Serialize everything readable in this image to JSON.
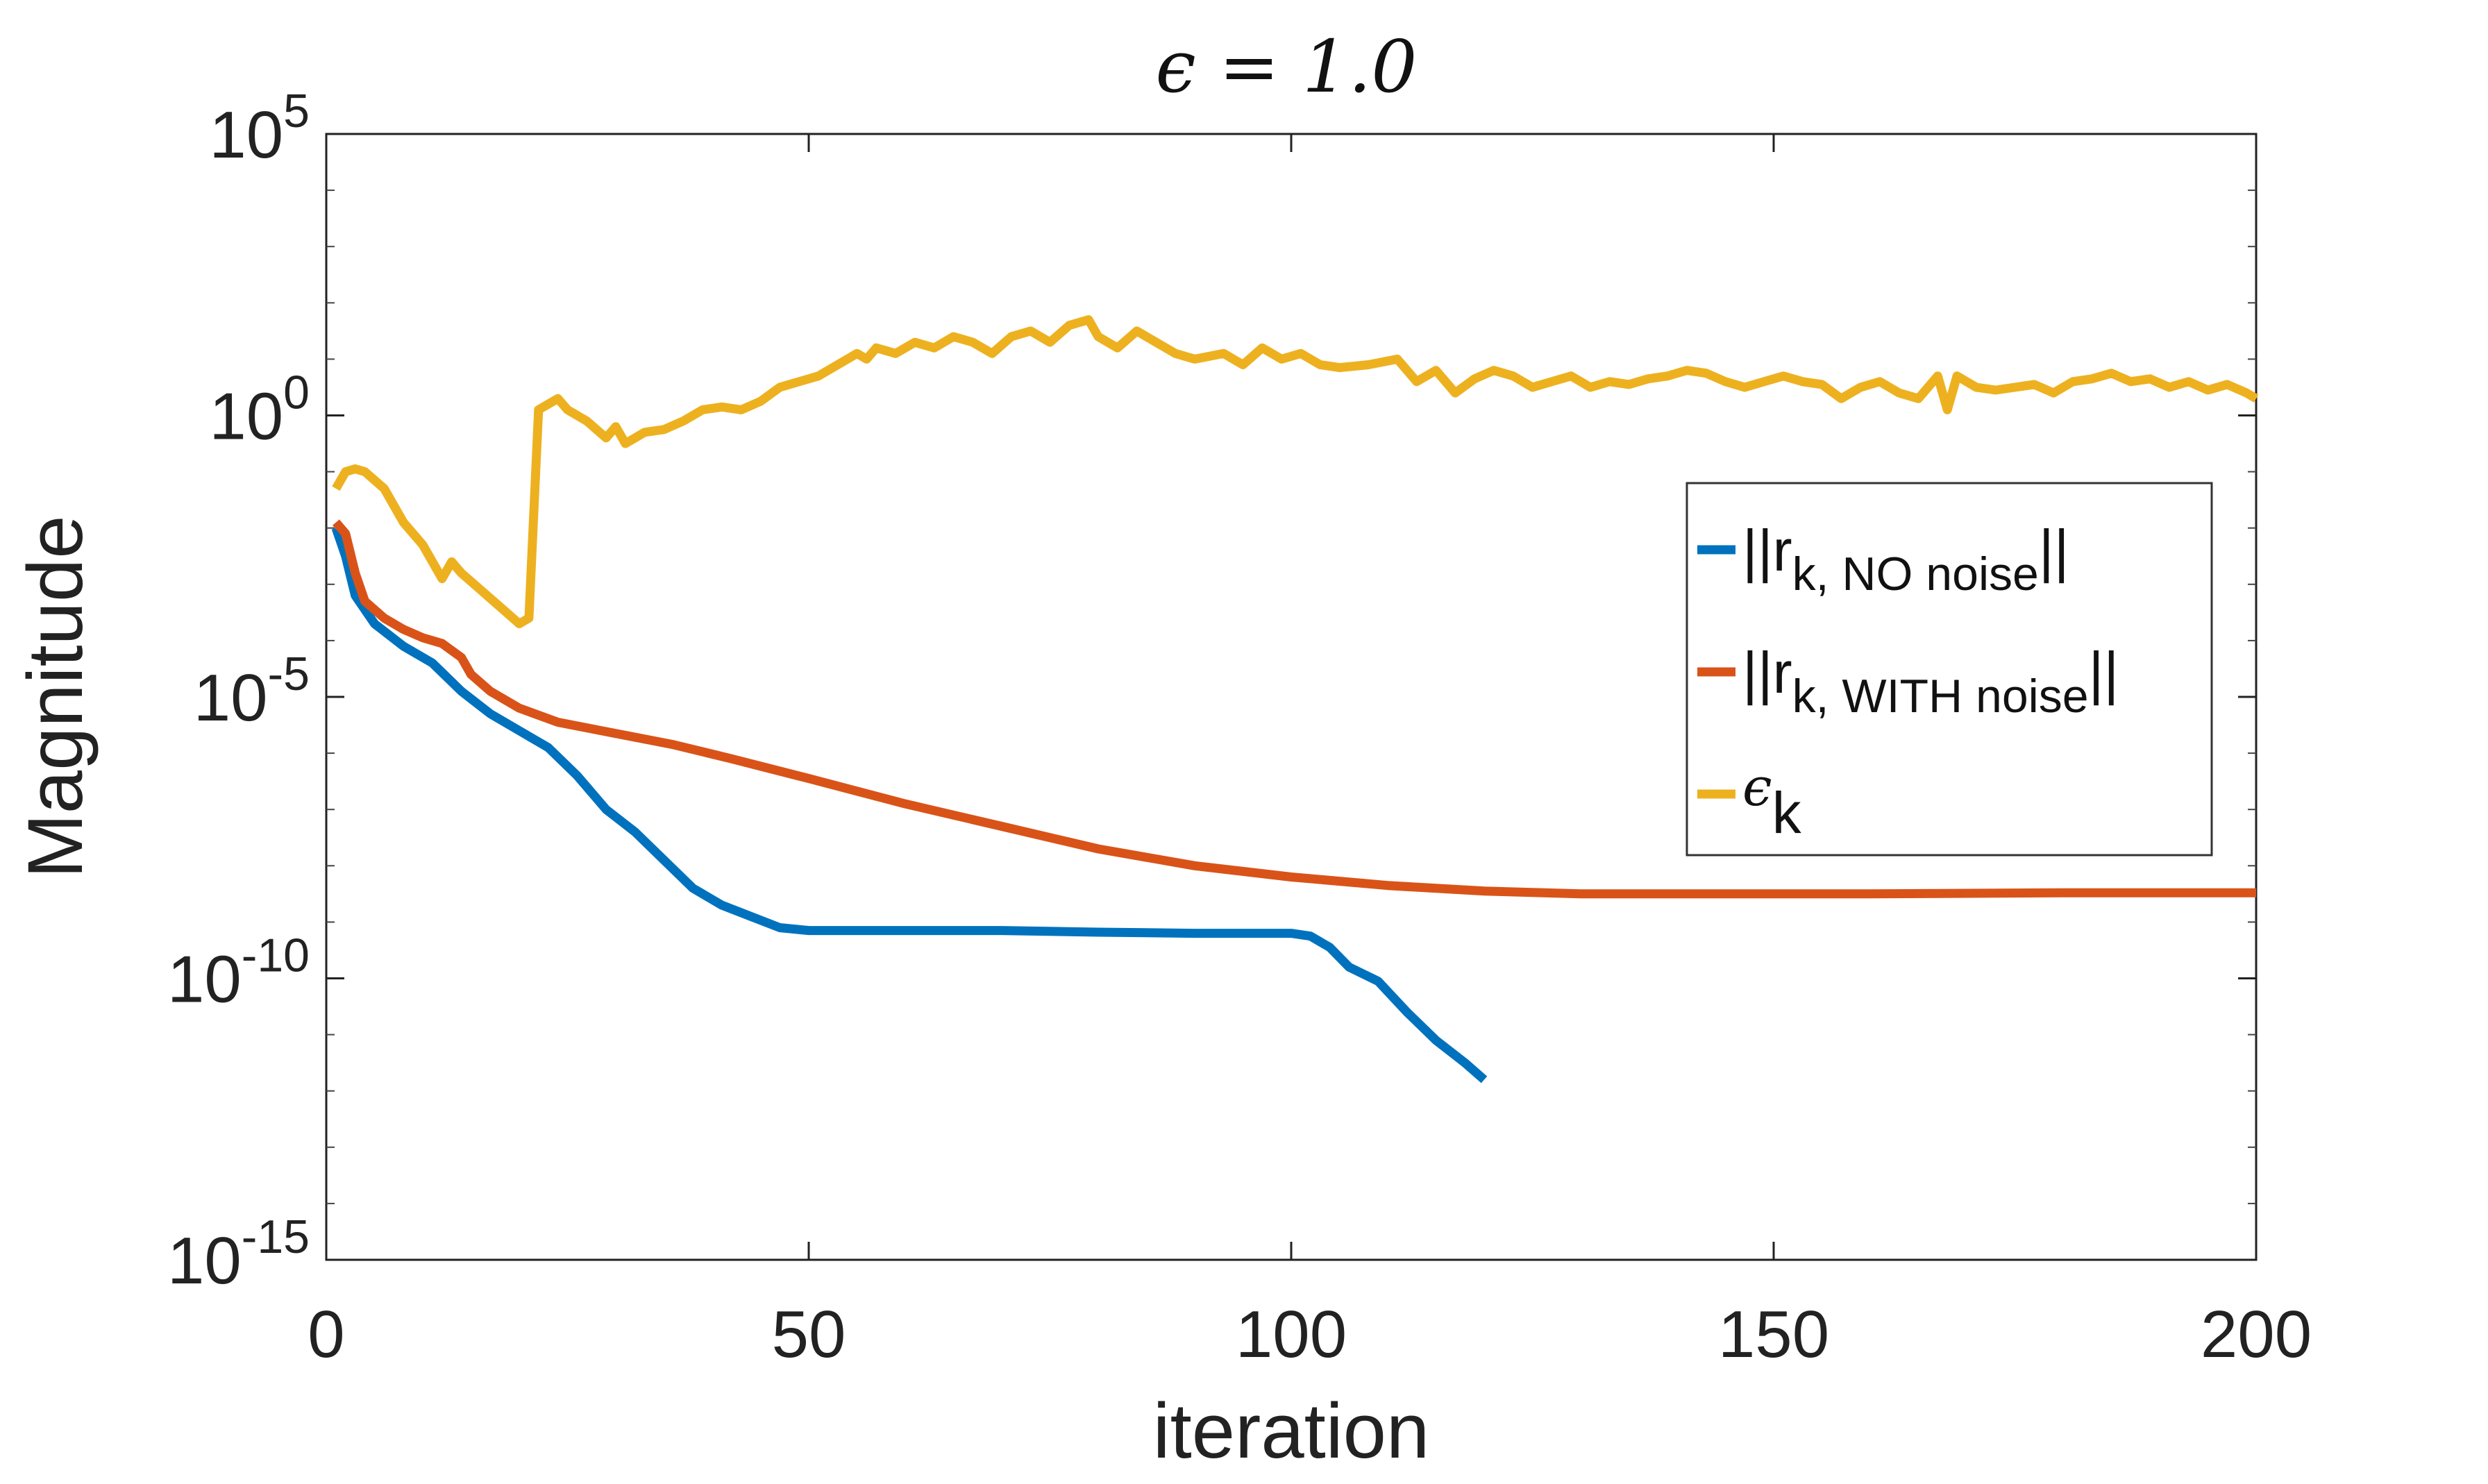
{
  "chart_data": {
    "type": "line",
    "title": "ϵ = 1.0",
    "xlabel": "iteration",
    "ylabel": "Magnitude",
    "xlim": [
      0,
      200
    ],
    "ylim_log10": [
      -15,
      5
    ],
    "yscale": "log",
    "x_ticks": [
      0,
      50,
      100,
      150,
      200
    ],
    "x_tick_labels": [
      "0",
      "50",
      "100",
      "150",
      "200"
    ],
    "y_ticks_log10": [
      -15,
      -10,
      -5,
      0,
      5
    ],
    "y_tick_labels": [
      {
        "base": "10",
        "exp": "-15"
      },
      {
        "base": "10",
        "exp": "-10"
      },
      {
        "base": "10",
        "exp": "-5"
      },
      {
        "base": "10",
        "exp": "0"
      },
      {
        "base": "10",
        "exp": "5"
      }
    ],
    "legend_position": "right",
    "series": [
      {
        "name": "||r_k, NO noise||",
        "legend_main": "||r",
        "legend_sub": "k, NO noise",
        "legend_tail": "||",
        "color": "#0072BD",
        "points": [
          [
            1,
            -2.0
          ],
          [
            2,
            -2.5
          ],
          [
            3,
            -3.2
          ],
          [
            5,
            -3.7
          ],
          [
            8,
            -4.1
          ],
          [
            11,
            -4.4
          ],
          [
            14,
            -4.9
          ],
          [
            17,
            -5.3
          ],
          [
            20,
            -5.6
          ],
          [
            23,
            -5.9
          ],
          [
            26,
            -6.4
          ],
          [
            29,
            -7.0
          ],
          [
            32,
            -7.4
          ],
          [
            35,
            -7.9
          ],
          [
            38,
            -8.4
          ],
          [
            41,
            -8.7
          ],
          [
            44,
            -8.9
          ],
          [
            47,
            -9.1
          ],
          [
            50,
            -9.15
          ],
          [
            60,
            -9.15
          ],
          [
            70,
            -9.15
          ],
          [
            80,
            -9.18
          ],
          [
            90,
            -9.2
          ],
          [
            100,
            -9.2
          ],
          [
            102,
            -9.25
          ],
          [
            104,
            -9.45
          ],
          [
            106,
            -9.8
          ],
          [
            109,
            -10.05
          ],
          [
            112,
            -10.6
          ],
          [
            115,
            -11.1
          ],
          [
            118,
            -11.5
          ],
          [
            120,
            -11.8
          ]
        ]
      },
      {
        "name": "||r_k, WITH noise||",
        "legend_main": "||r",
        "legend_sub": "k, WITH noise",
        "legend_tail": "||",
        "color": "#D95319",
        "points": [
          [
            1,
            -1.9
          ],
          [
            2,
            -2.1
          ],
          [
            3,
            -2.8
          ],
          [
            4,
            -3.3
          ],
          [
            6,
            -3.6
          ],
          [
            8,
            -3.8
          ],
          [
            10,
            -3.95
          ],
          [
            12,
            -4.05
          ],
          [
            14,
            -4.3
          ],
          [
            15,
            -4.6
          ],
          [
            17,
            -4.9
          ],
          [
            20,
            -5.2
          ],
          [
            24,
            -5.45
          ],
          [
            30,
            -5.65
          ],
          [
            36,
            -5.85
          ],
          [
            42,
            -6.1
          ],
          [
            50,
            -6.45
          ],
          [
            60,
            -6.9
          ],
          [
            70,
            -7.3
          ],
          [
            80,
            -7.7
          ],
          [
            90,
            -8.0
          ],
          [
            100,
            -8.2
          ],
          [
            110,
            -8.35
          ],
          [
            120,
            -8.45
          ],
          [
            130,
            -8.5
          ],
          [
            140,
            -8.5
          ],
          [
            160,
            -8.5
          ],
          [
            180,
            -8.48
          ],
          [
            200,
            -8.48
          ]
        ]
      },
      {
        "name": "ϵ_k",
        "legend_main": "ϵ",
        "legend_sub": "k",
        "legend_tail": "",
        "color": "#EDB120",
        "points": [
          [
            1,
            -1.3
          ],
          [
            2,
            -1.0
          ],
          [
            3,
            -0.95
          ],
          [
            4,
            -1.0
          ],
          [
            6,
            -1.3
          ],
          [
            8,
            -1.9
          ],
          [
            10,
            -2.3
          ],
          [
            12,
            -2.9
          ],
          [
            13,
            -2.6
          ],
          [
            14,
            -2.8
          ],
          [
            16,
            -3.1
          ],
          [
            18,
            -3.4
          ],
          [
            20,
            -3.7
          ],
          [
            21,
            -3.6
          ],
          [
            22,
            0.1
          ],
          [
            23,
            0.2
          ],
          [
            24,
            0.3
          ],
          [
            25,
            0.1
          ],
          [
            27,
            -0.1
          ],
          [
            29,
            -0.4
          ],
          [
            30,
            -0.2
          ],
          [
            31,
            -0.5
          ],
          [
            33,
            -0.3
          ],
          [
            35,
            -0.25
          ],
          [
            37,
            -0.1
          ],
          [
            39,
            0.1
          ],
          [
            41,
            0.15
          ],
          [
            43,
            0.1
          ],
          [
            45,
            0.25
          ],
          [
            47,
            0.5
          ],
          [
            49,
            0.6
          ],
          [
            51,
            0.7
          ],
          [
            53,
            0.9
          ],
          [
            55,
            1.1
          ],
          [
            56,
            1.0
          ],
          [
            57,
            1.2
          ],
          [
            59,
            1.1
          ],
          [
            61,
            1.3
          ],
          [
            63,
            1.2
          ],
          [
            65,
            1.4
          ],
          [
            67,
            1.3
          ],
          [
            69,
            1.1
          ],
          [
            71,
            1.4
          ],
          [
            73,
            1.5
          ],
          [
            75,
            1.3
          ],
          [
            77,
            1.6
          ],
          [
            79,
            1.7
          ],
          [
            80,
            1.4
          ],
          [
            82,
            1.2
          ],
          [
            84,
            1.5
          ],
          [
            86,
            1.3
          ],
          [
            88,
            1.1
          ],
          [
            90,
            1.0
          ],
          [
            93,
            1.1
          ],
          [
            95,
            0.9
          ],
          [
            97,
            1.2
          ],
          [
            99,
            1.0
          ],
          [
            101,
            1.1
          ],
          [
            103,
            0.9
          ],
          [
            105,
            0.85
          ],
          [
            108,
            0.9
          ],
          [
            111,
            1.0
          ],
          [
            113,
            0.6
          ],
          [
            115,
            0.8
          ],
          [
            117,
            0.4
          ],
          [
            119,
            0.65
          ],
          [
            121,
            0.8
          ],
          [
            123,
            0.7
          ],
          [
            125,
            0.5
          ],
          [
            127,
            0.6
          ],
          [
            129,
            0.7
          ],
          [
            131,
            0.5
          ],
          [
            133,
            0.6
          ],
          [
            135,
            0.55
          ],
          [
            137,
            0.65
          ],
          [
            139,
            0.7
          ],
          [
            141,
            0.8
          ],
          [
            143,
            0.75
          ],
          [
            145,
            0.6
          ],
          [
            147,
            0.5
          ],
          [
            149,
            0.6
          ],
          [
            151,
            0.7
          ],
          [
            153,
            0.6
          ],
          [
            155,
            0.55
          ],
          [
            157,
            0.3
          ],
          [
            159,
            0.5
          ],
          [
            161,
            0.6
          ],
          [
            163,
            0.4
          ],
          [
            165,
            0.3
          ],
          [
            167,
            0.7
          ],
          [
            168,
            0.1
          ],
          [
            169,
            0.7
          ],
          [
            171,
            0.5
          ],
          [
            173,
            0.45
          ],
          [
            175,
            0.5
          ],
          [
            177,
            0.55
          ],
          [
            179,
            0.4
          ],
          [
            181,
            0.6
          ],
          [
            183,
            0.65
          ],
          [
            185,
            0.75
          ],
          [
            187,
            0.6
          ],
          [
            189,
            0.65
          ],
          [
            191,
            0.5
          ],
          [
            193,
            0.6
          ],
          [
            195,
            0.45
          ],
          [
            197,
            0.55
          ],
          [
            199,
            0.4
          ],
          [
            200,
            0.3
          ]
        ]
      }
    ]
  }
}
